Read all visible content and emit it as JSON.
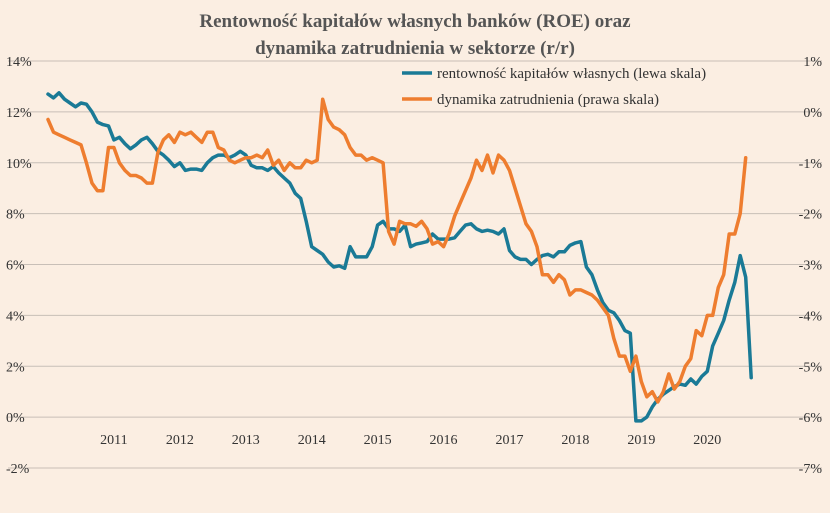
{
  "chart_data": {
    "type": "line",
    "title_line1": "Rentowność kapitałów własnych banków (ROE) oraz",
    "title_line2": "dynamika zatrudnienia w sektorze (r/r)",
    "xlabel": "",
    "ylabel_left": "",
    "ylabel_right": "",
    "x_range": [
      2010.0,
      2020.8
    ],
    "ylim_left": [
      -2,
      14
    ],
    "ylim_right": [
      -7,
      1
    ],
    "left_ticks": [
      "-2%",
      "0%",
      "2%",
      "4%",
      "6%",
      "8%",
      "10%",
      "12%",
      "14%"
    ],
    "left_tick_values": [
      -2,
      0,
      2,
      4,
      6,
      8,
      10,
      12,
      14
    ],
    "right_ticks": [
      "-7%",
      "-6%",
      "-5%",
      "-4%",
      "-3%",
      "-2%",
      "-1%",
      "0%",
      "1%"
    ],
    "right_tick_values": [
      -7,
      -6,
      -5,
      -4,
      -3,
      -2,
      -1,
      0,
      1
    ],
    "x_tick_labels": [
      "2011",
      "2012",
      "2013",
      "2014",
      "2015",
      "2016",
      "2017",
      "2018",
      "2019",
      "2020"
    ],
    "x_tick_positions": [
      2011,
      2012,
      2013,
      2014,
      2015,
      2016,
      2017,
      2018,
      2019,
      2020
    ],
    "grid": "horizontal",
    "legend_position": "top-right",
    "series": [
      {
        "name": "rentowność  kapitałów własnych (lewa skala)",
        "axis": "left",
        "color": "#1a7a96",
        "points": [
          [
            2010.0,
            12.7
          ],
          [
            2010.083,
            12.55
          ],
          [
            2010.167,
            12.75
          ],
          [
            2010.25,
            12.5
          ],
          [
            2010.333,
            12.35
          ],
          [
            2010.417,
            12.2
          ],
          [
            2010.5,
            12.35
          ],
          [
            2010.583,
            12.3
          ],
          [
            2010.667,
            12.0
          ],
          [
            2010.75,
            11.6
          ],
          [
            2010.833,
            11.5
          ],
          [
            2010.917,
            11.45
          ],
          [
            2011.0,
            10.9
          ],
          [
            2011.083,
            11.0
          ],
          [
            2011.167,
            10.75
          ],
          [
            2011.25,
            10.55
          ],
          [
            2011.333,
            10.7
          ],
          [
            2011.417,
            10.9
          ],
          [
            2011.5,
            11.0
          ],
          [
            2011.583,
            10.75
          ],
          [
            2011.667,
            10.45
          ],
          [
            2011.75,
            10.3
          ],
          [
            2011.833,
            10.1
          ],
          [
            2011.917,
            9.85
          ],
          [
            2012.0,
            10.0
          ],
          [
            2012.083,
            9.7
          ],
          [
            2012.167,
            9.75
          ],
          [
            2012.25,
            9.75
          ],
          [
            2012.333,
            9.7
          ],
          [
            2012.417,
            10.0
          ],
          [
            2012.5,
            10.2
          ],
          [
            2012.583,
            10.3
          ],
          [
            2012.667,
            10.3
          ],
          [
            2012.75,
            10.2
          ],
          [
            2012.833,
            10.3
          ],
          [
            2012.917,
            10.45
          ],
          [
            2013.0,
            10.3
          ],
          [
            2013.083,
            9.9
          ],
          [
            2013.167,
            9.8
          ],
          [
            2013.25,
            9.8
          ],
          [
            2013.333,
            9.7
          ],
          [
            2013.417,
            9.85
          ],
          [
            2013.5,
            9.6
          ],
          [
            2013.583,
            9.4
          ],
          [
            2013.667,
            9.2
          ],
          [
            2013.75,
            8.8
          ],
          [
            2013.833,
            8.6
          ],
          [
            2013.917,
            7.7
          ],
          [
            2014.0,
            6.7
          ],
          [
            2014.083,
            6.55
          ],
          [
            2014.167,
            6.4
          ],
          [
            2014.25,
            6.1
          ],
          [
            2014.333,
            5.9
          ],
          [
            2014.417,
            5.95
          ],
          [
            2014.5,
            5.85
          ],
          [
            2014.583,
            6.7
          ],
          [
            2014.667,
            6.3
          ],
          [
            2014.75,
            6.3
          ],
          [
            2014.833,
            6.3
          ],
          [
            2014.917,
            6.7
          ],
          [
            2015.0,
            7.55
          ],
          [
            2015.083,
            7.7
          ],
          [
            2015.167,
            7.4
          ],
          [
            2015.25,
            7.4
          ],
          [
            2015.333,
            7.3
          ],
          [
            2015.417,
            7.55
          ],
          [
            2015.5,
            6.7
          ],
          [
            2015.583,
            6.8
          ],
          [
            2015.667,
            6.85
          ],
          [
            2015.75,
            6.9
          ],
          [
            2015.833,
            7.2
          ],
          [
            2015.917,
            7.0
          ],
          [
            2016.0,
            7.0
          ],
          [
            2016.083,
            7.0
          ],
          [
            2016.167,
            7.05
          ],
          [
            2016.25,
            7.3
          ],
          [
            2016.333,
            7.55
          ],
          [
            2016.417,
            7.6
          ],
          [
            2016.5,
            7.4
          ],
          [
            2016.583,
            7.3
          ],
          [
            2016.667,
            7.35
          ],
          [
            2016.75,
            7.3
          ],
          [
            2016.833,
            7.2
          ],
          [
            2016.917,
            7.4
          ],
          [
            2017.0,
            6.55
          ],
          [
            2017.083,
            6.3
          ],
          [
            2017.167,
            6.2
          ],
          [
            2017.25,
            6.2
          ],
          [
            2017.333,
            6.0
          ],
          [
            2017.417,
            6.2
          ],
          [
            2017.5,
            6.35
          ],
          [
            2017.583,
            6.4
          ],
          [
            2017.667,
            6.3
          ],
          [
            2017.75,
            6.5
          ],
          [
            2017.833,
            6.5
          ],
          [
            2017.917,
            6.75
          ],
          [
            2018.0,
            6.85
          ],
          [
            2018.083,
            6.9
          ],
          [
            2018.167,
            5.9
          ],
          [
            2018.25,
            5.6
          ],
          [
            2018.333,
            5.0
          ],
          [
            2018.417,
            4.5
          ],
          [
            2018.5,
            4.2
          ],
          [
            2018.583,
            4.1
          ],
          [
            2018.667,
            3.8
          ],
          [
            2018.75,
            3.4
          ],
          [
            2018.833,
            3.3
          ],
          [
            2018.917,
            -0.15
          ],
          [
            2019.0,
            -0.15
          ],
          [
            2019.083,
            0.0
          ],
          [
            2019.167,
            0.4
          ],
          [
            2019.25,
            0.7
          ],
          [
            2019.333,
            0.9
          ],
          [
            2019.417,
            1.05
          ],
          [
            2019.5,
            1.2
          ],
          [
            2019.583,
            1.3
          ],
          [
            2019.667,
            1.25
          ],
          [
            2019.75,
            1.5
          ],
          [
            2019.833,
            1.3
          ],
          [
            2019.917,
            1.6
          ],
          [
            2020.0,
            1.8
          ],
          [
            2020.083,
            2.8
          ],
          [
            2020.167,
            3.3
          ],
          [
            2020.25,
            3.8
          ],
          [
            2020.333,
            4.6
          ],
          [
            2020.417,
            5.3
          ],
          [
            2020.5,
            6.35
          ],
          [
            2020.583,
            5.5
          ],
          [
            2020.667,
            1.55
          ]
        ]
      },
      {
        "name": "dynamika zatrudnienia (prawa skala)",
        "axis": "right",
        "color": "#ee7d2f",
        "points": [
          [
            2010.0,
            -0.15
          ],
          [
            2010.083,
            -0.4
          ],
          [
            2010.167,
            -0.45
          ],
          [
            2010.25,
            -0.5
          ],
          [
            2010.333,
            -0.55
          ],
          [
            2010.417,
            -0.6
          ],
          [
            2010.5,
            -0.65
          ],
          [
            2010.583,
            -1.0
          ],
          [
            2010.667,
            -1.4
          ],
          [
            2010.75,
            -1.55
          ],
          [
            2010.833,
            -1.55
          ],
          [
            2010.917,
            -0.7
          ],
          [
            2011.0,
            -0.7
          ],
          [
            2011.083,
            -1.0
          ],
          [
            2011.167,
            -1.15
          ],
          [
            2011.25,
            -1.25
          ],
          [
            2011.333,
            -1.25
          ],
          [
            2011.417,
            -1.3
          ],
          [
            2011.5,
            -1.4
          ],
          [
            2011.583,
            -1.4
          ],
          [
            2011.667,
            -0.8
          ],
          [
            2011.75,
            -0.55
          ],
          [
            2011.833,
            -0.45
          ],
          [
            2011.917,
            -0.6
          ],
          [
            2012.0,
            -0.4
          ],
          [
            2012.083,
            -0.45
          ],
          [
            2012.167,
            -0.4
          ],
          [
            2012.25,
            -0.5
          ],
          [
            2012.333,
            -0.6
          ],
          [
            2012.417,
            -0.4
          ],
          [
            2012.5,
            -0.4
          ],
          [
            2012.583,
            -0.7
          ],
          [
            2012.667,
            -0.75
          ],
          [
            2012.75,
            -0.95
          ],
          [
            2012.833,
            -1.0
          ],
          [
            2012.917,
            -0.95
          ],
          [
            2013.0,
            -0.9
          ],
          [
            2013.083,
            -0.9
          ],
          [
            2013.167,
            -0.85
          ],
          [
            2013.25,
            -0.9
          ],
          [
            2013.333,
            -0.75
          ],
          [
            2013.417,
            -1.05
          ],
          [
            2013.5,
            -0.95
          ],
          [
            2013.583,
            -1.15
          ],
          [
            2013.667,
            -1.0
          ],
          [
            2013.75,
            -1.1
          ],
          [
            2013.833,
            -1.1
          ],
          [
            2013.917,
            -0.95
          ],
          [
            2014.0,
            -1.0
          ],
          [
            2014.083,
            -0.95
          ],
          [
            2014.167,
            0.25
          ],
          [
            2014.25,
            -0.15
          ],
          [
            2014.333,
            -0.3
          ],
          [
            2014.417,
            -0.35
          ],
          [
            2014.5,
            -0.45
          ],
          [
            2014.583,
            -0.7
          ],
          [
            2014.667,
            -0.85
          ],
          [
            2014.75,
            -0.85
          ],
          [
            2014.833,
            -0.95
          ],
          [
            2014.917,
            -0.9
          ],
          [
            2015.0,
            -0.95
          ],
          [
            2015.083,
            -1.0
          ],
          [
            2015.167,
            -2.35
          ],
          [
            2015.25,
            -2.6
          ],
          [
            2015.333,
            -2.15
          ],
          [
            2015.417,
            -2.2
          ],
          [
            2015.5,
            -2.2
          ],
          [
            2015.583,
            -2.25
          ],
          [
            2015.667,
            -2.15
          ],
          [
            2015.75,
            -2.3
          ],
          [
            2015.833,
            -2.6
          ],
          [
            2015.917,
            -2.55
          ],
          [
            2016.0,
            -2.65
          ],
          [
            2016.083,
            -2.4
          ],
          [
            2016.167,
            -2.05
          ],
          [
            2016.25,
            -1.8
          ],
          [
            2016.333,
            -1.55
          ],
          [
            2016.417,
            -1.3
          ],
          [
            2016.5,
            -0.95
          ],
          [
            2016.583,
            -1.15
          ],
          [
            2016.667,
            -0.85
          ],
          [
            2016.75,
            -1.2
          ],
          [
            2016.833,
            -0.85
          ],
          [
            2016.917,
            -0.95
          ],
          [
            2017.0,
            -1.15
          ],
          [
            2017.083,
            -1.5
          ],
          [
            2017.167,
            -1.85
          ],
          [
            2017.25,
            -2.2
          ],
          [
            2017.333,
            -2.35
          ],
          [
            2017.417,
            -2.65
          ],
          [
            2017.5,
            -3.2
          ],
          [
            2017.583,
            -3.2
          ],
          [
            2017.667,
            -3.35
          ],
          [
            2017.75,
            -3.2
          ],
          [
            2017.833,
            -3.3
          ],
          [
            2017.917,
            -3.6
          ],
          [
            2018.0,
            -3.5
          ],
          [
            2018.083,
            -3.5
          ],
          [
            2018.167,
            -3.55
          ],
          [
            2018.25,
            -3.6
          ],
          [
            2018.333,
            -3.7
          ],
          [
            2018.417,
            -3.85
          ],
          [
            2018.5,
            -4.0
          ],
          [
            2018.583,
            -4.45
          ],
          [
            2018.667,
            -4.8
          ],
          [
            2018.75,
            -4.8
          ],
          [
            2018.833,
            -5.1
          ],
          [
            2018.917,
            -4.8
          ],
          [
            2019.0,
            -5.3
          ],
          [
            2019.083,
            -5.6
          ],
          [
            2019.167,
            -5.5
          ],
          [
            2019.25,
            -5.7
          ],
          [
            2019.333,
            -5.5
          ],
          [
            2019.417,
            -5.15
          ],
          [
            2019.5,
            -5.45
          ],
          [
            2019.583,
            -5.3
          ],
          [
            2019.667,
            -5.0
          ],
          [
            2019.75,
            -4.85
          ],
          [
            2019.833,
            -4.3
          ],
          [
            2019.917,
            -4.4
          ],
          [
            2020.0,
            -4.0
          ],
          [
            2020.083,
            -4.0
          ],
          [
            2020.167,
            -3.45
          ],
          [
            2020.25,
            -3.2
          ],
          [
            2020.333,
            -2.4
          ],
          [
            2020.417,
            -2.4
          ],
          [
            2020.5,
            -2.0
          ],
          [
            2020.583,
            -0.9
          ]
        ]
      }
    ]
  }
}
